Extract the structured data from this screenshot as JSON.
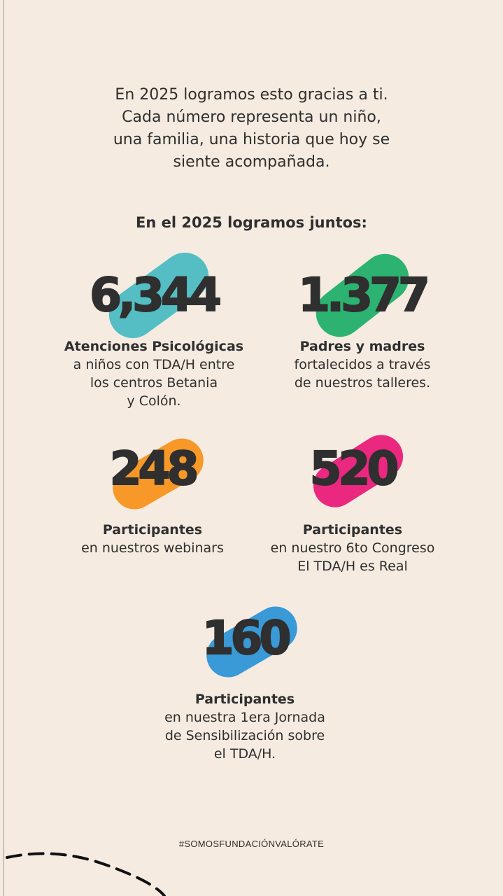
{
  "intro": [
    "En 2025 logramos esto gracias a ti.",
    "Cada número representa un niño,",
    "una familia, una historia que hoy se",
    "siente acompañada."
  ],
  "heading": "En el 2025 logramos juntos:",
  "stats": [
    {
      "number": "6,344",
      "label": "Atenciones Psicológicas",
      "desc": [
        "a niños con TDA/H entre",
        "los centros Betania",
        "y Colón."
      ],
      "color": "#4bbcc2"
    },
    {
      "number": "1.377",
      "label": "Padres y madres",
      "desc": [
        "fortalecidos a través",
        "de nuestros talleres."
      ],
      "color": "#22b06a"
    },
    {
      "number": "248",
      "label": "Participantes",
      "desc": [
        "en nuestros webinars"
      ],
      "color": "#f7941d"
    },
    {
      "number": "520",
      "label": "Participantes",
      "desc": [
        "en nuestro 6to Congreso",
        "El TDA/H es Real"
      ],
      "color": "#e91e7a"
    },
    {
      "number": "160",
      "label": "Participantes",
      "desc": [
        "en nuestra 1era Jornada",
        "de Sensibilización sobre",
        "el TDA/H."
      ],
      "color": "#2f95d6"
    }
  ],
  "hashtag": "#SOMOSFUNDACIÓNVALÓRATE"
}
